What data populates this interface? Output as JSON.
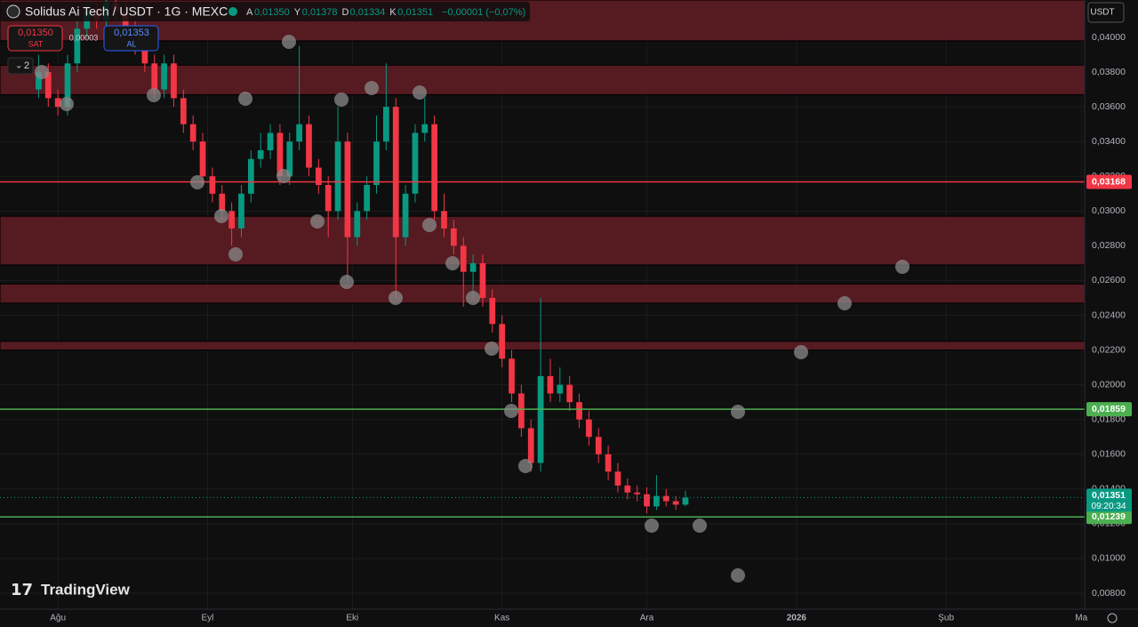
{
  "ui": {
    "symbol": "Solidus Ai Tech / USDT · 1G · MEXC",
    "ohlc": [
      {
        "key": "A",
        "value": "0,01350"
      },
      {
        "key": "Y",
        "value": "0,01378"
      },
      {
        "key": "D",
        "value": "0,01334"
      },
      {
        "key": "K",
        "value": "0,01351"
      }
    ],
    "change": "−0,00001 (−0,07%)",
    "sell": {
      "price": "0,01350",
      "label": "SAT"
    },
    "spread": "0,00003",
    "buy": {
      "price": "0,01353",
      "label": "AL"
    },
    "indicators": "2",
    "currency": "USDT",
    "brand": "TradingView"
  },
  "chart_data": {
    "type": "candlestick",
    "x": [
      -4,
      -2,
      0,
      2,
      4,
      6,
      8,
      10,
      12,
      14,
      16,
      18,
      20,
      22,
      24,
      26,
      28,
      30,
      32,
      34,
      36,
      38,
      40,
      42,
      44,
      46,
      48,
      50,
      52,
      54,
      56,
      58,
      60,
      62,
      64,
      66,
      68,
      70,
      72,
      74,
      76,
      78,
      80,
      82,
      84,
      86,
      88,
      90,
      92,
      94,
      96,
      98,
      100,
      102,
      104,
      106,
      108,
      110,
      112,
      114,
      116,
      118,
      120,
      122,
      124,
      126,
      128,
      130
    ],
    "open": [
      0.037,
      0.038,
      0.0365,
      0.036,
      0.0385,
      0.0405,
      0.0415,
      0.041,
      0.042,
      0.0415,
      0.0405,
      0.0395,
      0.0385,
      0.037,
      0.0385,
      0.0365,
      0.035,
      0.034,
      0.032,
      0.031,
      0.03,
      0.029,
      0.031,
      0.033,
      0.0335,
      0.0345,
      0.032,
      0.034,
      0.035,
      0.0325,
      0.0315,
      0.03,
      0.034,
      0.0285,
      0.03,
      0.0315,
      0.034,
      0.036,
      0.0285,
      0.031,
      0.0345,
      0.035,
      0.03,
      0.029,
      0.028,
      0.0265,
      0.027,
      0.025,
      0.0235,
      0.0215,
      0.0195,
      0.0175,
      0.0155,
      0.0205,
      0.0195,
      0.02,
      0.019,
      0.018,
      0.017,
      0.016,
      0.015,
      0.0142,
      0.0138,
      0.0137,
      0.013,
      0.0136,
      0.0133,
      0.0131
    ],
    "high": [
      0.039,
      0.0385,
      0.037,
      0.039,
      0.041,
      0.042,
      0.042,
      0.0425,
      0.0425,
      0.042,
      0.041,
      0.04,
      0.039,
      0.039,
      0.039,
      0.037,
      0.0355,
      0.0345,
      0.0325,
      0.0315,
      0.0305,
      0.0315,
      0.0335,
      0.0345,
      0.035,
      0.035,
      0.0345,
      0.0395,
      0.0355,
      0.033,
      0.032,
      0.036,
      0.0345,
      0.0305,
      0.032,
      0.0355,
      0.0385,
      0.0365,
      0.0315,
      0.035,
      0.0365,
      0.0355,
      0.031,
      0.0295,
      0.0285,
      0.0275,
      0.0275,
      0.0255,
      0.024,
      0.022,
      0.02,
      0.018,
      0.025,
      0.0215,
      0.021,
      0.0205,
      0.0195,
      0.0185,
      0.0175,
      0.0165,
      0.0155,
      0.0146,
      0.0142,
      0.0141,
      0.0148,
      0.014,
      0.0136,
      0.0139
    ],
    "low": [
      0.0365,
      0.036,
      0.0355,
      0.0355,
      0.038,
      0.04,
      0.0405,
      0.0405,
      0.041,
      0.04,
      0.039,
      0.038,
      0.0365,
      0.0365,
      0.036,
      0.0345,
      0.0335,
      0.0315,
      0.0305,
      0.0295,
      0.028,
      0.0285,
      0.0305,
      0.0325,
      0.033,
      0.0315,
      0.0315,
      0.0335,
      0.032,
      0.031,
      0.0285,
      0.0295,
      0.026,
      0.028,
      0.0295,
      0.031,
      0.0335,
      0.025,
      0.028,
      0.0305,
      0.034,
      0.0295,
      0.0285,
      0.0275,
      0.0245,
      0.025,
      0.0245,
      0.023,
      0.021,
      0.019,
      0.017,
      0.015,
      0.015,
      0.019,
      0.019,
      0.0185,
      0.0175,
      0.0165,
      0.0155,
      0.0145,
      0.0138,
      0.0134,
      0.0133,
      0.0126,
      0.0128,
      0.013,
      0.0128,
      0.013
    ],
    "close": [
      0.038,
      0.0365,
      0.036,
      0.0385,
      0.0405,
      0.0415,
      0.041,
      0.042,
      0.0415,
      0.0405,
      0.0395,
      0.0385,
      0.037,
      0.0385,
      0.0365,
      0.035,
      0.034,
      0.032,
      0.031,
      0.03,
      0.029,
      0.031,
      0.033,
      0.0335,
      0.0345,
      0.032,
      0.034,
      0.035,
      0.0325,
      0.0315,
      0.03,
      0.034,
      0.0285,
      0.03,
      0.0315,
      0.034,
      0.036,
      0.0285,
      0.031,
      0.0345,
      0.035,
      0.03,
      0.029,
      0.028,
      0.0265,
      0.027,
      0.025,
      0.0235,
      0.0215,
      0.0195,
      0.0175,
      0.0155,
      0.0205,
      0.0195,
      0.02,
      0.019,
      0.018,
      0.017,
      0.016,
      0.015,
      0.0142,
      0.0138,
      0.0137,
      0.013,
      0.0136,
      0.0133,
      0.0131,
      0.0135
    ],
    "up_color": "#089981",
    "down_color": "#f23645",
    "xlim": [
      -12,
      212.7
    ],
    "xticks": [
      {
        "value": 0,
        "label": "Ağu"
      },
      {
        "value": 31,
        "label": "Eyl"
      },
      {
        "value": 61,
        "label": "Eki"
      },
      {
        "value": 92,
        "label": "Kas"
      },
      {
        "value": 122,
        "label": "Ara"
      },
      {
        "value": 153,
        "label": "2026"
      },
      {
        "value": 184,
        "label": "Şub"
      },
      {
        "value": 212,
        "label": "Ma"
      }
    ],
    "ylim": [
      0.00708,
      0.04215
    ],
    "yticks": [
      {
        "value": 0.04,
        "label": "0,04000"
      },
      {
        "value": 0.038,
        "label": "0,03800"
      },
      {
        "value": 0.036,
        "label": "0,03600"
      },
      {
        "value": 0.034,
        "label": "0,03400"
      },
      {
        "value": 0.032,
        "label": "0,03200"
      },
      {
        "value": 0.03,
        "label": "0,03000"
      },
      {
        "value": 0.028,
        "label": "0,02800"
      },
      {
        "value": 0.026,
        "label": "0,02600"
      },
      {
        "value": 0.024,
        "label": "0,02400"
      },
      {
        "value": 0.022,
        "label": "0,02200"
      },
      {
        "value": 0.02,
        "label": "0,02000"
      },
      {
        "value": 0.018,
        "label": "0,01800"
      },
      {
        "value": 0.016,
        "label": "0,01600"
      },
      {
        "value": 0.014,
        "label": "0,01400"
      },
      {
        "value": 0.012,
        "label": "0,01200"
      },
      {
        "value": 0.01,
        "label": "0,01000"
      },
      {
        "value": 0.008,
        "label": "0,00800"
      }
    ],
    "zones": [
      [
        0.0398,
        0.04215
      ],
      [
        0.0367,
        0.0384
      ],
      [
        0.0269,
        0.0297
      ],
      [
        0.0247,
        0.0258
      ],
      [
        0.022,
        0.0225
      ]
    ],
    "zone_color": "#5e1c24",
    "levels": [
      {
        "value": 0.03168,
        "label": "0,03168",
        "color": "#f23645"
      },
      {
        "value": 0.01859,
        "label": "0,01859",
        "color": "#4caf50"
      },
      {
        "value": 0.01239,
        "label": "0,01239",
        "color": "#4caf50"
      }
    ],
    "last_price": {
      "value": 0.01351,
      "label": "0,01351",
      "countdown": "09:20:34",
      "color": "#089981"
    }
  }
}
